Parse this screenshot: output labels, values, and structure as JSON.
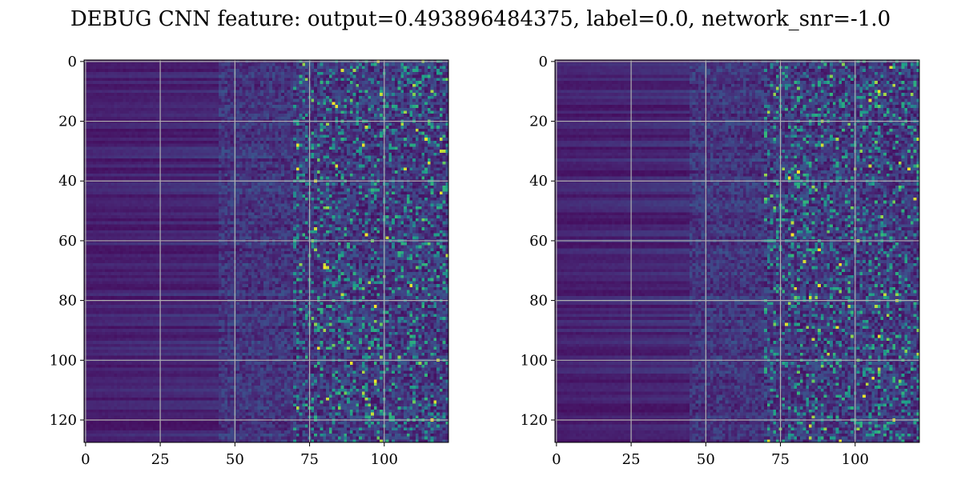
{
  "figure": {
    "title": "DEBUG CNN feature: output=0.493896484375, label=0.0, network_snr=-1.0"
  },
  "chart_data": [
    {
      "type": "heatmap",
      "title": "",
      "xlabel": "",
      "ylabel": "",
      "colormap": "viridis",
      "rows": 128,
      "cols": 122,
      "xlim": [
        -0.5,
        121.5
      ],
      "ylim": [
        127.5,
        -0.5
      ],
      "xticks": [
        0,
        25,
        50,
        75,
        100
      ],
      "yticks": [
        0,
        20,
        40,
        60,
        80,
        100,
        120
      ],
      "grid": true,
      "grid_color": "#b0b0b0",
      "pattern_seed": 11,
      "colors": {
        "low": "#440154",
        "mid": "#21918c",
        "high": "#fde725"
      }
    },
    {
      "type": "heatmap",
      "title": "",
      "xlabel": "",
      "ylabel": "",
      "colormap": "viridis",
      "rows": 128,
      "cols": 122,
      "xlim": [
        -0.5,
        121.5
      ],
      "ylim": [
        127.5,
        -0.5
      ],
      "xticks": [
        0,
        25,
        50,
        75,
        100
      ],
      "yticks": [
        0,
        20,
        40,
        60,
        80,
        100,
        120
      ],
      "grid": true,
      "grid_color": "#b0b0b0",
      "pattern_seed": 29,
      "colors": {
        "low": "#440154",
        "mid": "#21918c",
        "high": "#fde725"
      }
    }
  ]
}
